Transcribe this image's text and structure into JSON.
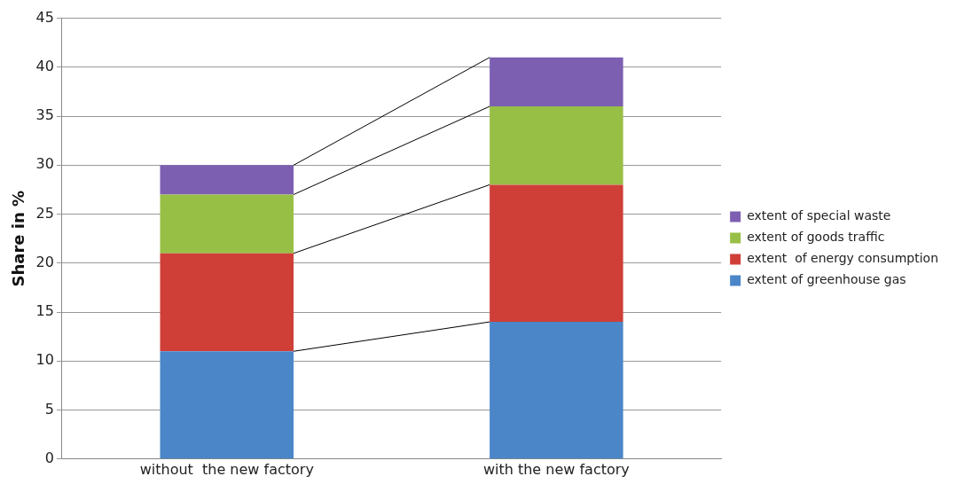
{
  "chart_data": {
    "type": "bar",
    "stacked": true,
    "ylabel": "Share in %",
    "categories": [
      "without  the new factory",
      "with the new factory"
    ],
    "series": [
      {
        "name": "extent of greenhouse gas",
        "color": "#4a86c8",
        "values": [
          11,
          14
        ]
      },
      {
        "name": "extent  of energy consumption",
        "color": "#cf3f38",
        "values": [
          10,
          14
        ]
      },
      {
        "name": "extent of goods traffic",
        "color": "#98bf45",
        "values": [
          6,
          8
        ]
      },
      {
        "name": "extent of special waste",
        "color": "#7d5fb2",
        "values": [
          3,
          5
        ]
      }
    ],
    "ylim": [
      0,
      45
    ],
    "yticks": [
      0,
      5,
      10,
      15,
      20,
      25,
      30,
      35,
      40,
      45
    ],
    "grid": "y",
    "legend": "right"
  }
}
